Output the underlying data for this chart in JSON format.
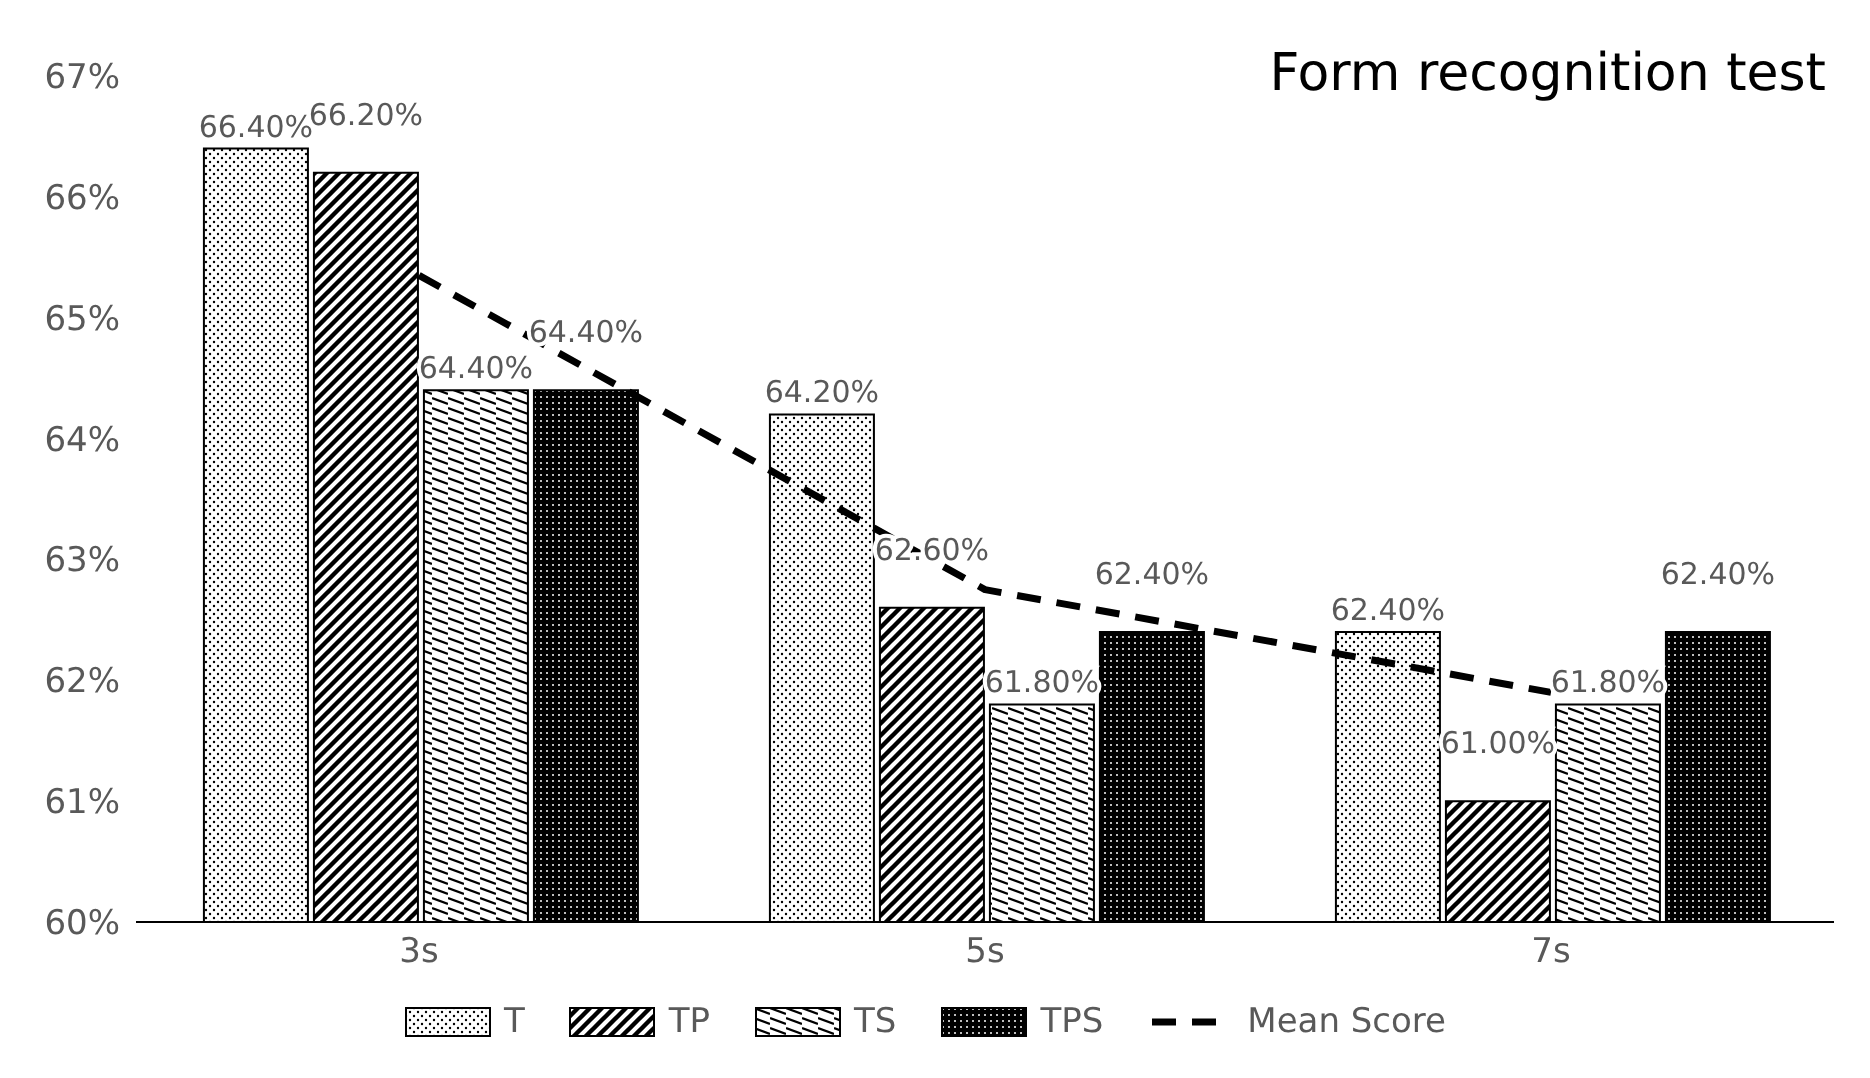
{
  "chart_data": {
    "type": "bar",
    "title": "Form recognition test",
    "categories": [
      "3s",
      "5s",
      "7s"
    ],
    "series": [
      {
        "name": "T",
        "color": "#000000",
        "values": [
          66.4,
          64.2,
          62.4
        ],
        "value_labels": [
          "66.40%",
          "64.20%",
          "62.40%"
        ]
      },
      {
        "name": "TP",
        "color": "#000000",
        "values": [
          66.2,
          62.6,
          61.0
        ],
        "value_labels": [
          "66.20%",
          "62.60%",
          "61.00%"
        ]
      },
      {
        "name": "TS",
        "color": "#000000",
        "values": [
          64.4,
          61.8,
          61.8
        ],
        "value_labels": [
          "64.40%",
          "61.80%",
          "61.80%"
        ]
      },
      {
        "name": "TPS",
        "color": "#000000",
        "values": [
          64.4,
          62.4,
          62.4
        ],
        "value_labels": [
          "64.40%",
          "62.40%",
          "62.40%"
        ]
      },
      {
        "name": "Mean Score",
        "type": "line",
        "color": "#000000",
        "line_style": "dashed",
        "marker": "none",
        "values": [
          65.35,
          62.75,
          61.9
        ]
      }
    ],
    "ylim": [
      60,
      67
    ],
    "yticks": [
      {
        "value": 60,
        "label": "60%"
      },
      {
        "value": 61,
        "label": "61%"
      },
      {
        "value": 62,
        "label": "62%"
      },
      {
        "value": 63,
        "label": "63%"
      },
      {
        "value": 64,
        "label": "64%"
      },
      {
        "value": 65,
        "label": "65%"
      },
      {
        "value": 66,
        "label": "66%"
      },
      {
        "value": 67,
        "label": "67%"
      }
    ],
    "grid": false,
    "legend": "bottom"
  }
}
